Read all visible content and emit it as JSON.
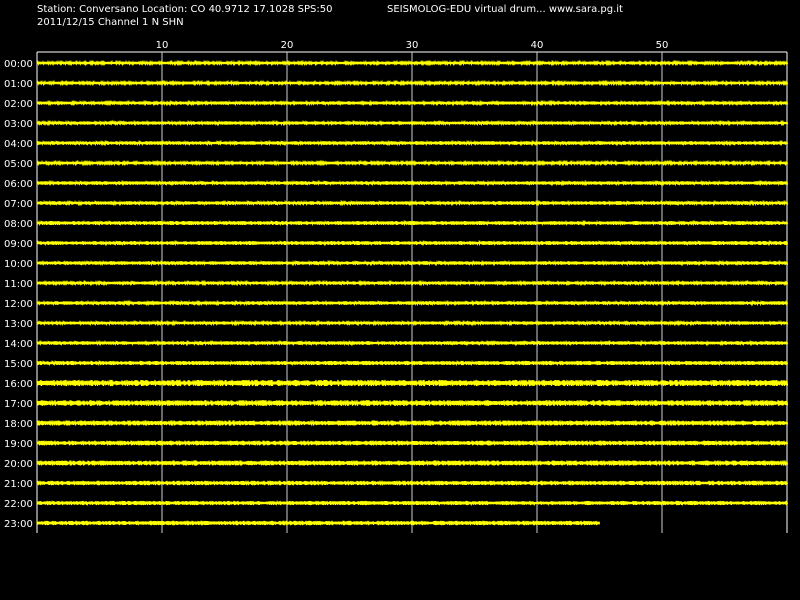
{
  "header": {
    "station_line": "Station: Conversano Location: CO 40.9712 17.1028 SPS:50",
    "date_line": "2011/12/15  Channel 1 N SHN",
    "app_title": "SEISMOLOG-EDU virtual drum... www.sara.pg.it"
  },
  "chart_data": {
    "type": "line",
    "xlim": [
      0,
      60
    ],
    "x_ticks": [
      10,
      20,
      30,
      40,
      50
    ],
    "grid": true,
    "trace_color": "#ffff00",
    "grid_color": "#ffffff",
    "background": "#000000",
    "rows": [
      {
        "label": "00:00",
        "end_minute": 60,
        "amplitude": 1.0
      },
      {
        "label": "01:00",
        "end_minute": 60,
        "amplitude": 1.0
      },
      {
        "label": "02:00",
        "end_minute": 60,
        "amplitude": 1.2
      },
      {
        "label": "03:00",
        "end_minute": 60,
        "amplitude": 1.2
      },
      {
        "label": "04:00",
        "end_minute": 60,
        "amplitude": 1.3
      },
      {
        "label": "05:00",
        "end_minute": 60,
        "amplitude": 1.0
      },
      {
        "label": "06:00",
        "end_minute": 60,
        "amplitude": 1.3
      },
      {
        "label": "07:00",
        "end_minute": 60,
        "amplitude": 1.3
      },
      {
        "label": "08:00",
        "end_minute": 60,
        "amplitude": 1.4
      },
      {
        "label": "09:00",
        "end_minute": 60,
        "amplitude": 1.4
      },
      {
        "label": "10:00",
        "end_minute": 60,
        "amplitude": 1.3
      },
      {
        "label": "11:00",
        "end_minute": 60,
        "amplitude": 1.2
      },
      {
        "label": "12:00",
        "end_minute": 60,
        "amplitude": 1.3
      },
      {
        "label": "13:00",
        "end_minute": 60,
        "amplitude": 1.2
      },
      {
        "label": "14:00",
        "end_minute": 60,
        "amplitude": 1.3
      },
      {
        "label": "15:00",
        "end_minute": 60,
        "amplitude": 1.5
      },
      {
        "label": "16:00",
        "end_minute": 60,
        "amplitude": 2.2
      },
      {
        "label": "17:00",
        "end_minute": 60,
        "amplitude": 2.0
      },
      {
        "label": "18:00",
        "end_minute": 60,
        "amplitude": 1.8
      },
      {
        "label": "19:00",
        "end_minute": 60,
        "amplitude": 1.7
      },
      {
        "label": "20:00",
        "end_minute": 60,
        "amplitude": 1.8
      },
      {
        "label": "21:00",
        "end_minute": 60,
        "amplitude": 1.6
      },
      {
        "label": "22:00",
        "end_minute": 60,
        "amplitude": 1.5
      },
      {
        "label": "23:00",
        "end_minute": 45,
        "amplitude": 1.6
      }
    ]
  }
}
